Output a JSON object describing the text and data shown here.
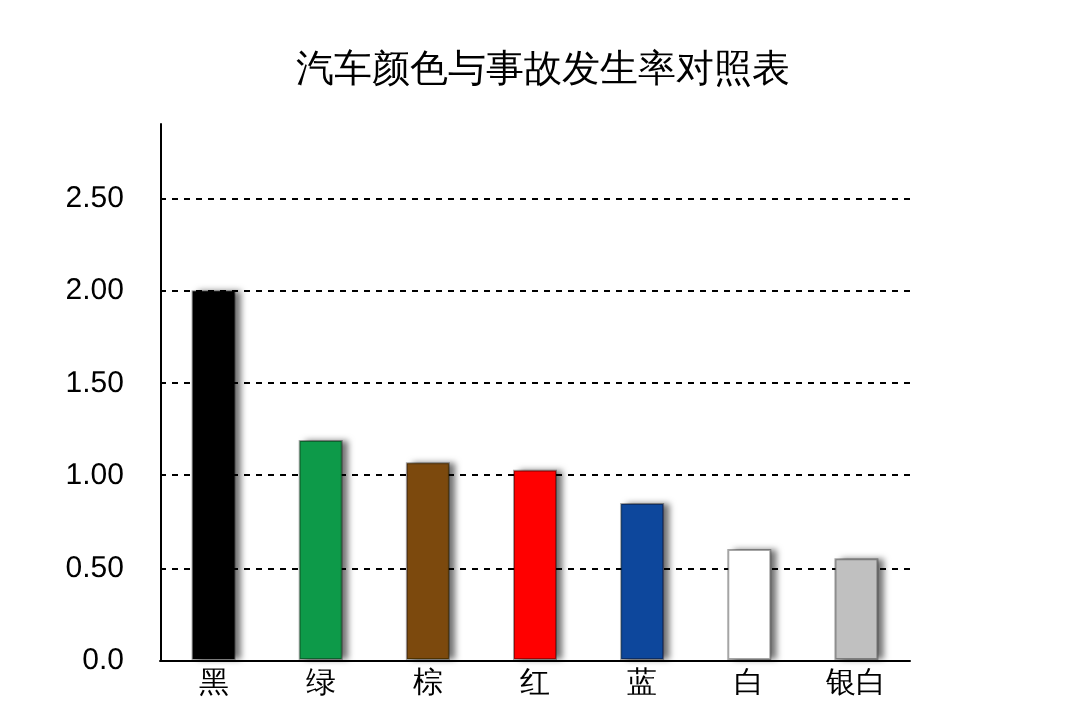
{
  "chart_data": {
    "type": "bar",
    "title": "汽车颜色与事故发生率对照表",
    "categories": [
      "黑",
      "绿",
      "棕",
      "红",
      "蓝",
      "白",
      "银白"
    ],
    "values": [
      2.0,
      1.19,
      1.07,
      1.03,
      0.85,
      0.6,
      0.55
    ],
    "colors": [
      "#000000",
      "#109a48",
      "#7b4a0a",
      "#ff0000",
      "#0c479c",
      "#ffffff",
      "#c0c0c0"
    ],
    "ylim": [
      0,
      2.9
    ],
    "yticks": [
      {
        "value": 0,
        "label": "0.0"
      },
      {
        "value": 0.5,
        "label": "0.50"
      },
      {
        "value": 1,
        "label": "1.00"
      },
      {
        "value": 1.5,
        "label": "1.50"
      },
      {
        "value": 2,
        "label": "2.00"
      },
      {
        "value": 2.5,
        "label": "2.50"
      }
    ],
    "grid": "y"
  }
}
